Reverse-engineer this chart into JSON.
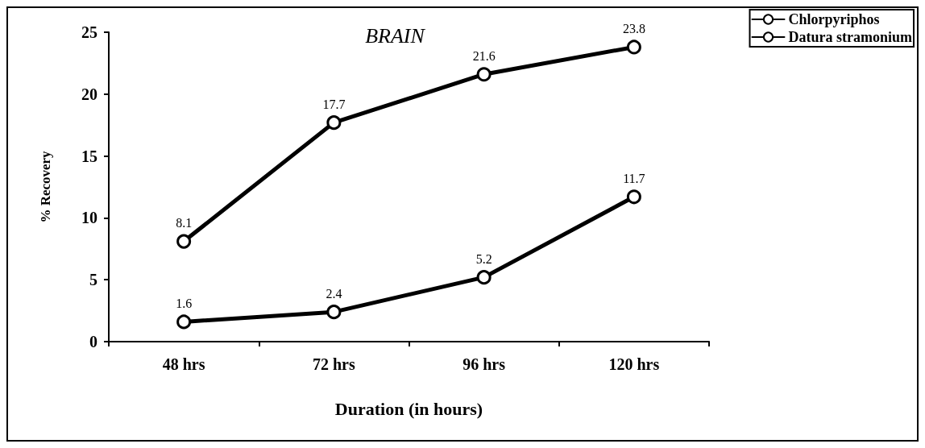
{
  "chart_data": {
    "type": "line",
    "title": "BRAIN",
    "xlabel": "Duration (in hours)",
    "ylabel": "% Recovery",
    "categories": [
      "48 hrs",
      "72 hrs",
      "96 hrs",
      "120 hrs"
    ],
    "series": [
      {
        "name": "Chlorpyriphos",
        "color": "#000000",
        "values": [
          8.1,
          17.7,
          21.6,
          23.8
        ]
      },
      {
        "name": "Datura stramonium",
        "color": "#000000",
        "values": [
          1.6,
          2.4,
          5.2,
          11.7
        ]
      }
    ],
    "ylim": [
      0,
      25
    ],
    "yticks": [
      0,
      5,
      10,
      15,
      20,
      25
    ],
    "grid": false,
    "legend": "top right",
    "marker": "circle",
    "line_style": "solid",
    "data_labels": true
  }
}
